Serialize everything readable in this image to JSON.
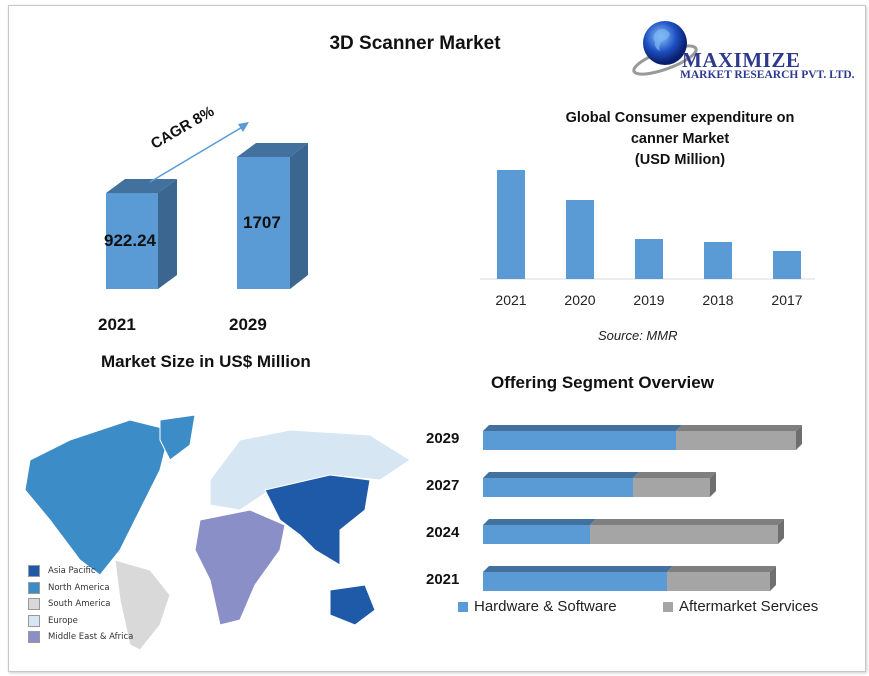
{
  "title": "3D Scanner Market",
  "logo": {
    "name": "MAXIMIZE",
    "subtitle": "MARKET RESEARCH PVT. LTD."
  },
  "market_size": {
    "caption": "Market Size in US$ Million",
    "cagr_label": "CAGR 8%",
    "bars": [
      {
        "year": "2021",
        "value": 922.24,
        "label": "922.24"
      },
      {
        "year": "2029",
        "value": 1707,
        "label": "1707"
      }
    ]
  },
  "colors": {
    "blue": "#5b9bd5",
    "blue_dark": "#41719c",
    "gray": "#a5a5a5",
    "gray_dark": "#7f7f7f"
  },
  "map": {
    "legend": [
      {
        "label": "Asia Pacific",
        "color": "#1f5aa8"
      },
      {
        "label": "North America",
        "color": "#3c8cc8"
      },
      {
        "label": "South America",
        "color": "#d9d9d9"
      },
      {
        "label": "Europe",
        "color": "#d6e6f2"
      },
      {
        "label": "Middle East & Africa",
        "color": "#8b8fc8"
      }
    ]
  },
  "segment": {
    "title": "Offering  Segment Overview",
    "legend": [
      "Hardware & Software",
      "Aftermarket Services"
    ]
  },
  "chart_data": [
    {
      "type": "bar",
      "title": "Global Consumer expenditure on canner Market (USD Million)",
      "title_lines": [
        "Global Consumer expenditure on",
        "canner Market",
        "(USD Million)"
      ],
      "categories": [
        "2021",
        "2020",
        "2019",
        "2018",
        "2017"
      ],
      "values": [
        109,
        79,
        40,
        37,
        28
      ],
      "source": "Source: MMR",
      "xlabel": "",
      "ylabel": "",
      "grid": false
    },
    {
      "type": "bar",
      "orientation": "horizontal-stacked",
      "title": "Offering  Segment Overview",
      "categories": [
        "2029",
        "2027",
        "2024",
        "2021"
      ],
      "series": [
        {
          "name": "Hardware & Software",
          "values": [
            193,
            150,
            107,
            184
          ]
        },
        {
          "name": "Aftermarket Services",
          "values": [
            120,
            77,
            188,
            103
          ]
        }
      ],
      "legend_position": "bottom"
    }
  ]
}
